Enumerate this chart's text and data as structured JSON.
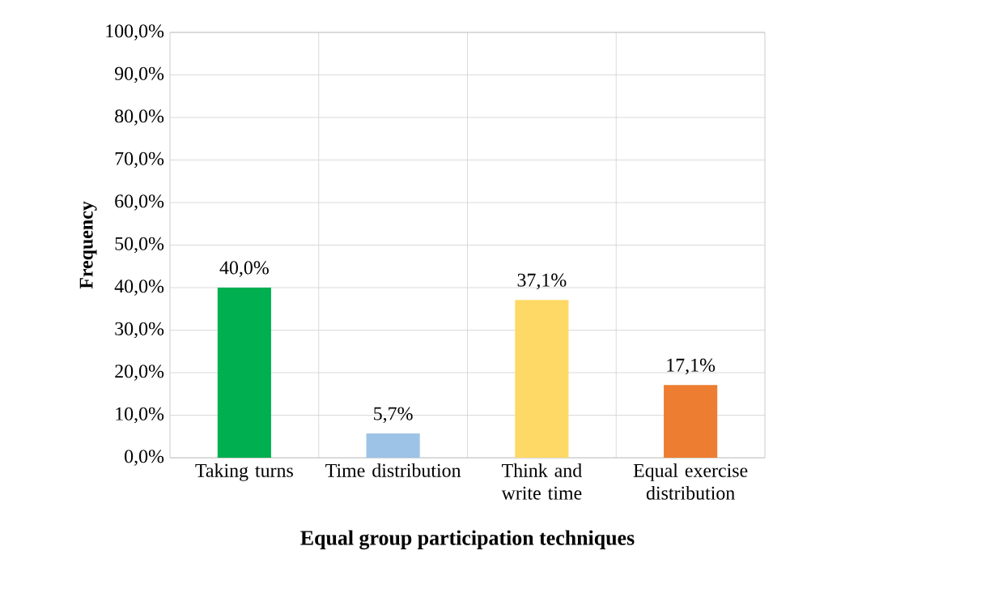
{
  "chart_data": {
    "type": "bar",
    "xlabel": "Equal group participation techniques",
    "ylabel": "Frequency",
    "categories": [
      "Taking turns",
      "Time distribution",
      "Think and write time",
      "Equal exercise distribution"
    ],
    "values": [
      40.0,
      5.7,
      37.1,
      17.1
    ],
    "value_labels": [
      "40,0%",
      "5,7%",
      "37,1%",
      "17,1%"
    ],
    "colors": [
      "#00b050",
      "#9dc3e6",
      "#ffd966",
      "#ed7d31"
    ],
    "ylim": [
      0,
      100
    ],
    "yticks": [
      {
        "value": 0,
        "label": "0,0%"
      },
      {
        "value": 10,
        "label": "10,0%"
      },
      {
        "value": 20,
        "label": "20,0%"
      },
      {
        "value": 30,
        "label": "30,0%"
      },
      {
        "value": 40,
        "label": "40,0%"
      },
      {
        "value": 50,
        "label": "50,0%"
      },
      {
        "value": 60,
        "label": "60,0%"
      },
      {
        "value": 70,
        "label": "70,0%"
      },
      {
        "value": 80,
        "label": "80,0%"
      },
      {
        "value": 90,
        "label": "90,0%"
      },
      {
        "value": 100,
        "label": "100,0%"
      }
    ],
    "grid": true
  }
}
